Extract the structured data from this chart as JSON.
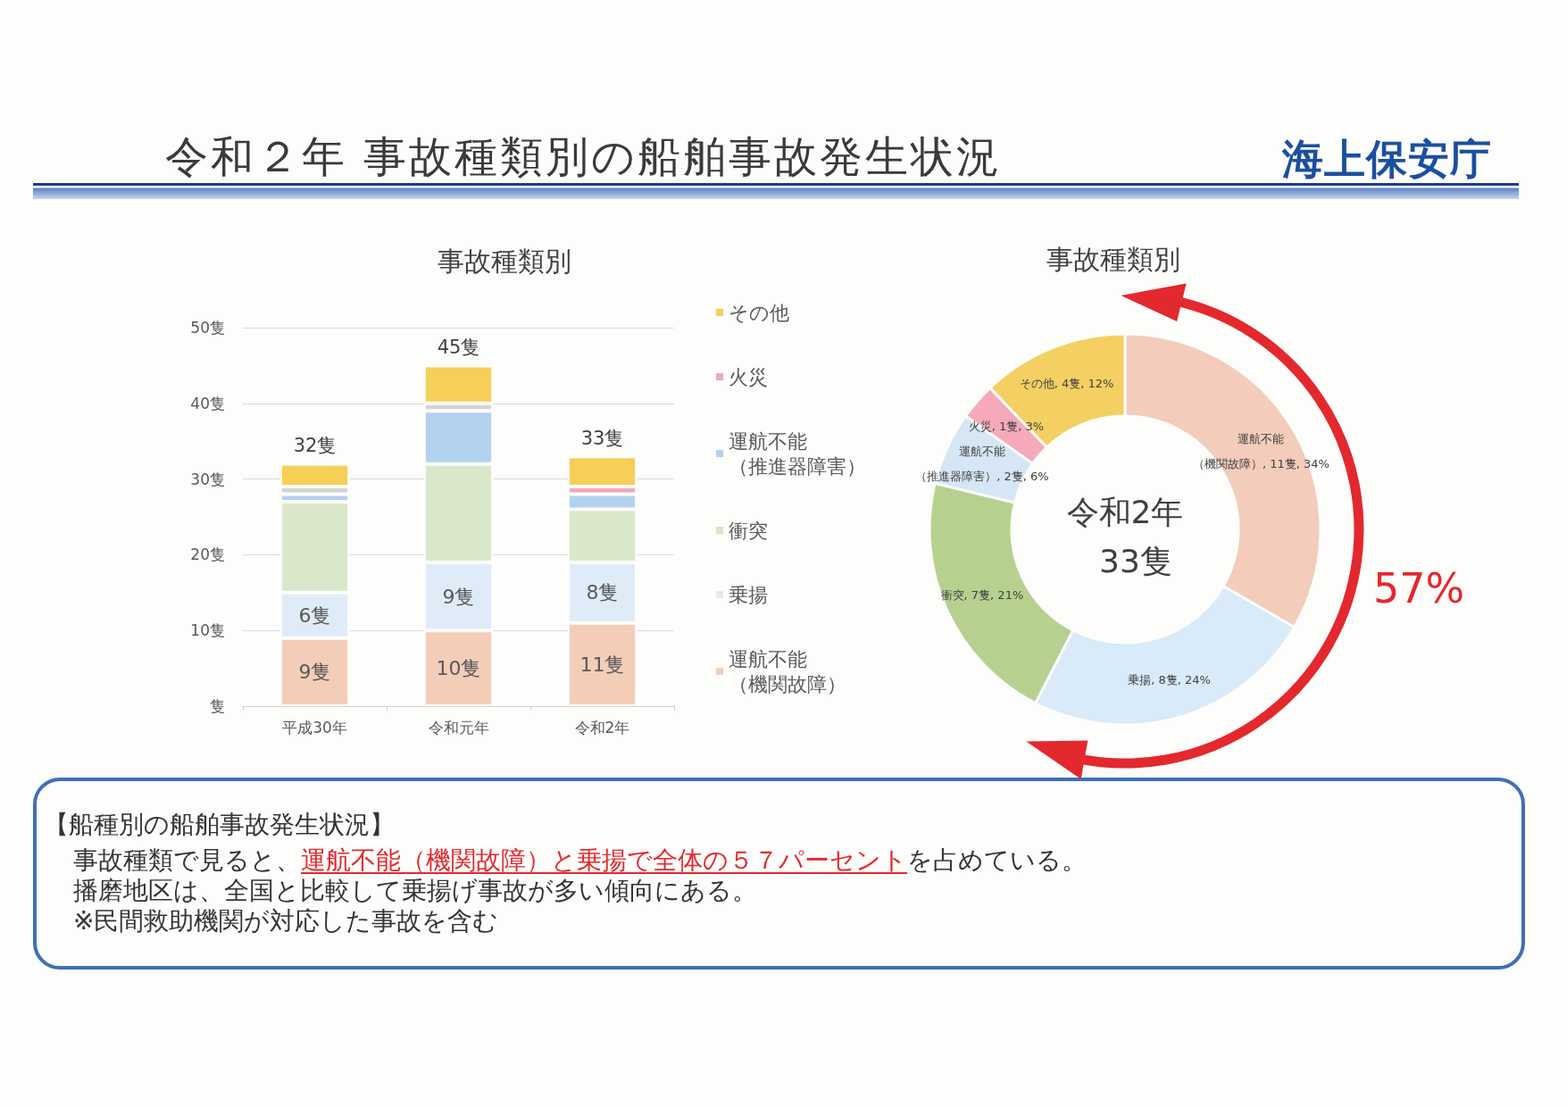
{
  "chart_data": [
    {
      "type": "other",
      "title": "令和２年 事故種類別の船舶事故発生状況",
      "annotations": [
        "海上保安庁"
      ]
    },
    {
      "type": "bar",
      "title": "事故種類別",
      "categories": [
        "平成30年",
        "令和元年",
        "令和2年"
      ],
      "stacked": true,
      "series": [
        {
          "name": "運航不能（機関故障）",
          "color": "#f4cdb9",
          "values": [
            9,
            10,
            11
          ],
          "value_labels": [
            "9隻",
            "10隻",
            "11隻"
          ]
        },
        {
          "name": "乗揚",
          "color": "#dfecf8",
          "values": [
            6,
            9,
            8
          ],
          "value_labels": [
            "6隻",
            "9隻",
            "8隻"
          ]
        },
        {
          "name": "衝突",
          "color": "#d9e7cb",
          "values": [
            12,
            13,
            7
          ]
        },
        {
          "name": "運航不能（推進器障害）",
          "color": "#b2d2f0",
          "values": [
            1,
            7,
            2
          ]
        },
        {
          "name": "火災",
          "color": "#f2a6bd",
          "colors": [
            "#d4d5d2",
            "#d4d5d2",
            "#f2a6bd"
          ],
          "values": [
            1,
            1,
            1
          ]
        },
        {
          "name": "その他",
          "color": "#f6cf59",
          "values": [
            3,
            5,
            4
          ]
        }
      ],
      "totals": [
        "32隻",
        "45隻",
        "33隻"
      ],
      "ylim": [
        0,
        50
      ],
      "yticks": [
        {
          "value": 0,
          "label": "隻"
        },
        {
          "value": 10,
          "label": "10隻"
        },
        {
          "value": 20,
          "label": "20隻"
        },
        {
          "value": 30,
          "label": "30隻"
        },
        {
          "value": 40,
          "label": "40隻"
        },
        {
          "value": 50,
          "label": "50隻"
        }
      ],
      "grid": "y",
      "legend": "right"
    },
    {
      "type": "donut",
      "title": "事故種類別",
      "categories": [
        "運航不能（機関故障）",
        "乗揚",
        "衝突",
        "運航不能（推進器障害）",
        "火災",
        "その他"
      ],
      "values": [
        11,
        8,
        7,
        2,
        1,
        4
      ],
      "colors": [
        "#f3ccbb",
        "#d9eaf8",
        "#b6d18f",
        "#d6e6f4",
        "#f5a9b9",
        "#f4d063"
      ],
      "value_labels": [
        "11隻, 34%",
        "8隻, 24%",
        "7隻, 21%",
        "2隻, 6%",
        "1隻, 3%",
        "4隻, 12%"
      ],
      "annotations": [
        "令和2年",
        "33隻",
        "57%"
      ]
    },
    {
      "type": "other",
      "title": "【船種別の船舶事故発生状況】",
      "annotations": [
        "事故種類で見ると、",
        "運航不能（機関故障）と乗揚で全体の５７パーセント",
        "を占めている。",
        "播磨地区は、全国と比較して乗揚げ事故が多い傾向にある。",
        "※民間救助機関が対応した事故を含む"
      ]
    }
  ]
}
